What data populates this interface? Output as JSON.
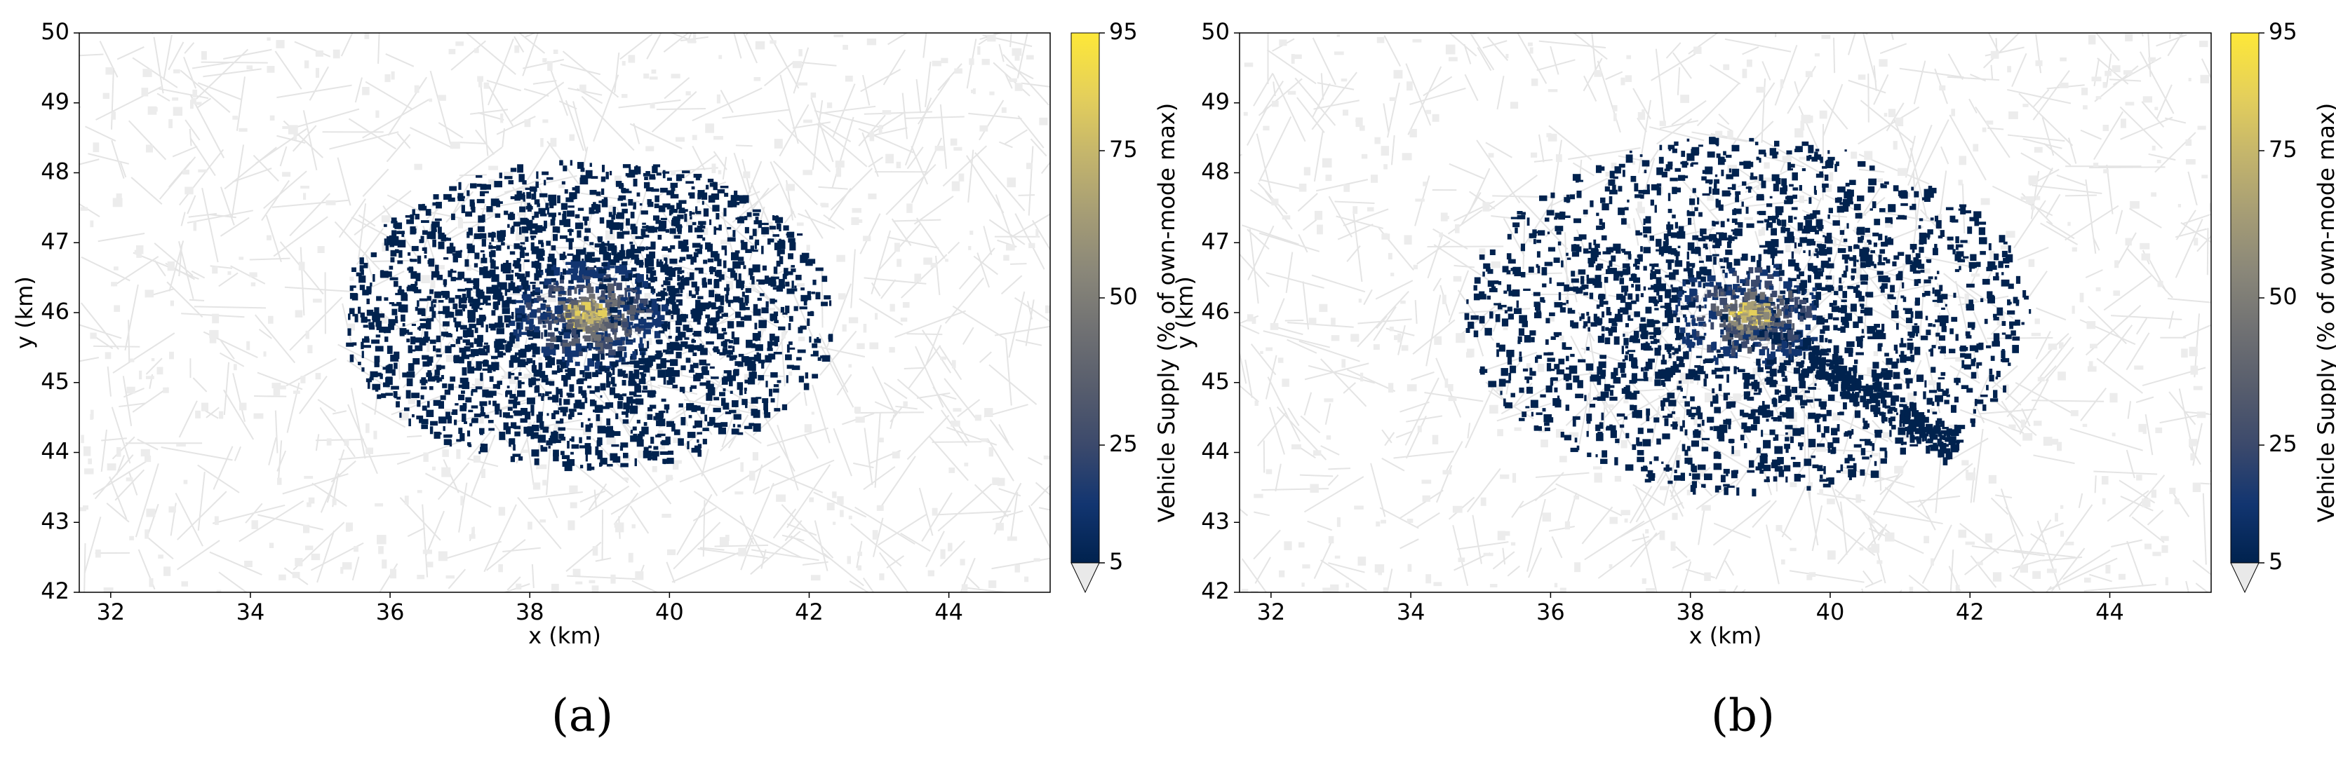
{
  "chart_data": [
    {
      "type": "map",
      "panel_label": "(a)",
      "xlabel": "x (km)",
      "ylabel": "y (km)",
      "xlim": [
        31.55,
        45.45
      ],
      "ylim": [
        42,
        50
      ],
      "xticks": [
        32,
        34,
        36,
        38,
        40,
        42,
        44
      ],
      "yticks": [
        42,
        43,
        44,
        45,
        46,
        47,
        48,
        49,
        50
      ],
      "colorbar_label": "Vehicle Supply (% of own-mode max)",
      "clim": [
        5,
        95
      ],
      "cticks": [
        5,
        25,
        50,
        75,
        95
      ],
      "colormap": "cividis",
      "extend": "min"
    },
    {
      "type": "map",
      "panel_label": "(b)",
      "xlabel": "x (km)",
      "ylabel": "y (km)",
      "xlim": [
        31.55,
        45.45
      ],
      "ylim": [
        42,
        50
      ],
      "xticks": [
        32,
        34,
        36,
        38,
        40,
        42,
        44
      ],
      "yticks": [
        42,
        43,
        44,
        45,
        46,
        47,
        48,
        49,
        50
      ],
      "colorbar_label": "Vehicle Supply (% of own-mode max)",
      "clim": [
        5,
        95
      ],
      "cticks": [
        5,
        25,
        50,
        75,
        95
      ],
      "colormap": "cividis",
      "extend": "min"
    }
  ]
}
